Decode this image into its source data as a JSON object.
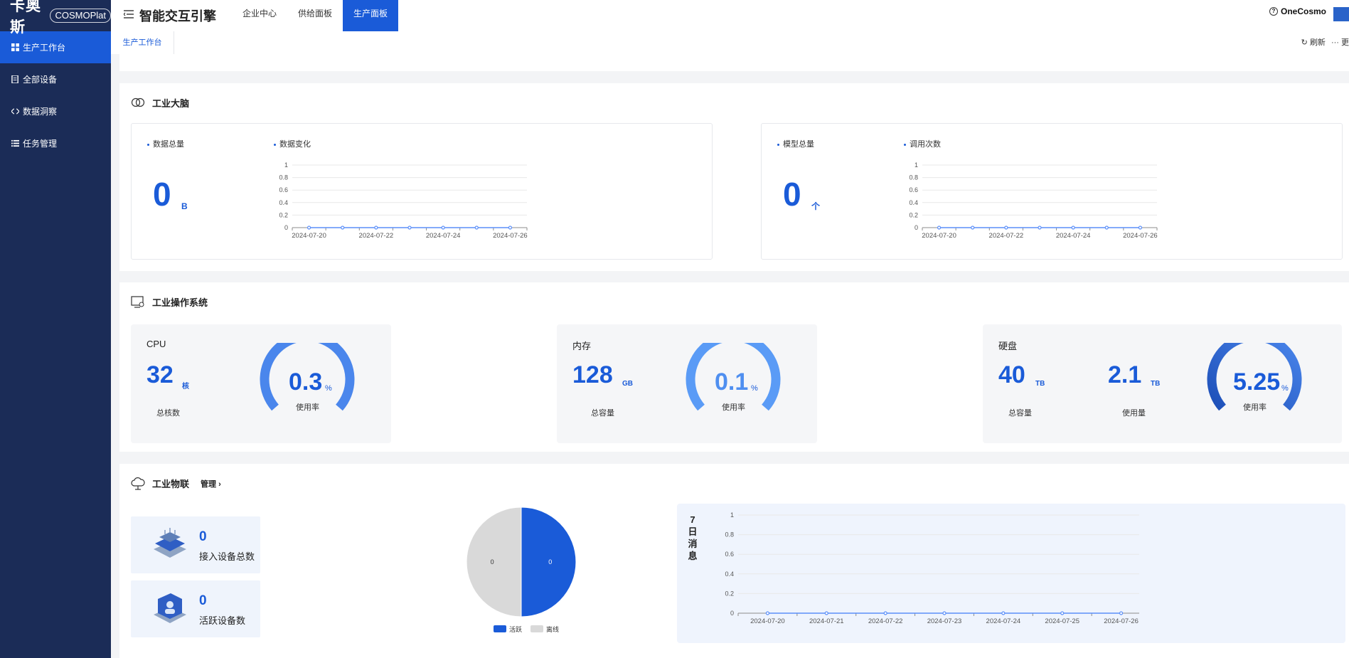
{
  "brand": {
    "name_cn": "卡奥斯",
    "name_en": "COSMOPlat"
  },
  "app_title": "智能交互引擎",
  "top_tabs": [
    {
      "label": "企业中心",
      "active": false
    },
    {
      "label": "供给面板",
      "active": false
    },
    {
      "label": "生产面板",
      "active": true
    }
  ],
  "top_right": {
    "help_label": "OneCosmo"
  },
  "sidebar": {
    "items": [
      {
        "label": "生产工作台",
        "icon": "grid-icon",
        "active": true
      },
      {
        "label": "全部设备",
        "icon": "device-icon",
        "active": false
      },
      {
        "label": "数据洞察",
        "icon": "code-icon",
        "active": false
      },
      {
        "label": "任务管理",
        "icon": "list-icon",
        "active": false
      }
    ]
  },
  "subbar": {
    "tab": "生产工作台",
    "refresh": "刷新",
    "more": "更"
  },
  "brain": {
    "title": "工业大脑",
    "data_total": {
      "label": "数据总量",
      "value": "0",
      "unit": "B"
    },
    "data_change": {
      "label": "数据变化"
    },
    "model_total": {
      "label": "模型总量",
      "value": "0",
      "unit": "个"
    },
    "call_count": {
      "label": "调用次数"
    }
  },
  "os": {
    "title": "工业操作系统",
    "cpu": {
      "title": "CPU",
      "value": "32",
      "unit": "核",
      "caption": "总核数",
      "usage": "0.3",
      "usage_unit": "%",
      "usage_caption": "使用率"
    },
    "memory": {
      "title": "内存",
      "value": "128",
      "unit": "GB",
      "caption": "总容量",
      "usage": "0.1",
      "usage_unit": "%",
      "usage_caption": "使用率"
    },
    "disk": {
      "title": "硬盘",
      "value": "40",
      "unit": "TB",
      "caption": "总容量",
      "used_value": "2.1",
      "used_unit": "TB",
      "used_caption": "使用量",
      "usage": "5.25",
      "usage_unit": "%",
      "usage_caption": "使用率"
    }
  },
  "iot": {
    "title": "工业物联",
    "manage": "管理",
    "connected": {
      "value": "0",
      "label": "接入设备总数"
    },
    "active": {
      "value": "0",
      "label": "活跃设备数"
    },
    "messages_title": "7日消息"
  },
  "colors": {
    "primary": "#1a5bd8",
    "sidebar": "#1b2c57",
    "line": "#5b8ff9",
    "offline": "#d9d9d9"
  },
  "chart_data": [
    {
      "type": "line",
      "x": [
        "2024-07-20",
        "2024-07-21",
        "2024-07-22",
        "2024-07-23",
        "2024-07-24",
        "2024-07-25",
        "2024-07-26"
      ],
      "xtick_labels": [
        "2024-07-20",
        "2024-07-22",
        "2024-07-24",
        "2024-07-26"
      ],
      "series": [
        {
          "values": [
            0,
            0,
            0,
            0,
            0,
            0,
            0
          ]
        }
      ],
      "yticks": [
        "0",
        "0.2",
        "0.4",
        "0.6",
        "0.8",
        "1"
      ],
      "ylim": [
        0,
        1
      ]
    },
    {
      "type": "line",
      "x": [
        "2024-07-20",
        "2024-07-21",
        "2024-07-22",
        "2024-07-23",
        "2024-07-24",
        "2024-07-25",
        "2024-07-26"
      ],
      "xtick_labels": [
        "2024-07-20",
        "2024-07-22",
        "2024-07-24",
        "2024-07-26"
      ],
      "series": [
        {
          "values": [
            0,
            0,
            0,
            0,
            0,
            0,
            0
          ]
        }
      ],
      "yticks": [
        "0",
        "0.2",
        "0.4",
        "0.6",
        "0.8",
        "1"
      ],
      "ylim": [
        0,
        1
      ]
    },
    {
      "type": "pie",
      "labels": [
        "活跃",
        "离线"
      ],
      "values": [
        0,
        0
      ],
      "data_labels": [
        "0",
        "0"
      ],
      "legend": "bottom"
    },
    {
      "type": "line",
      "x": [
        "2024-07-20",
        "2024-07-21",
        "2024-07-22",
        "2024-07-23",
        "2024-07-24",
        "2024-07-25",
        "2024-07-26"
      ],
      "xtick_labels": [
        "2024-07-20",
        "2024-07-21",
        "2024-07-22",
        "2024-07-23",
        "2024-07-24",
        "2024-07-25",
        "2024-07-26"
      ],
      "series": [
        {
          "values": [
            0,
            0,
            0,
            0,
            0,
            0,
            0
          ]
        }
      ],
      "yticks": [
        "0",
        "0.2",
        "0.4",
        "0.6",
        "0.8",
        "1"
      ],
      "ylim": [
        0,
        1
      ]
    }
  ]
}
